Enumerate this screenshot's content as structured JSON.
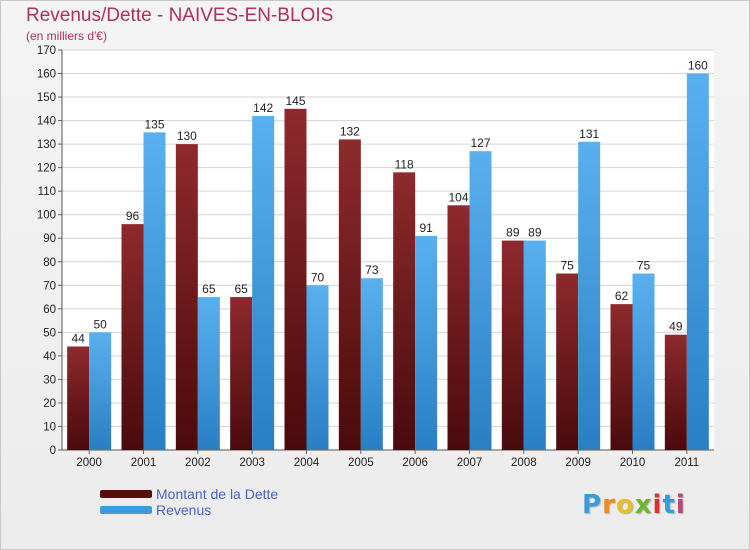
{
  "header": {
    "title": "Revenus/Dette - NAIVES-EN-BLOIS",
    "subtitle": "(en milliers d'€)"
  },
  "logo": {
    "letters": [
      "P",
      "r",
      "o",
      "x",
      "i",
      "t",
      "i"
    ],
    "colors": [
      "#3a9bd8",
      "#f08a1c",
      "#e7c21d",
      "#6cb52d",
      "#d8342f",
      "#3a9bd8",
      "#b9467a"
    ]
  },
  "colors": {
    "dette": "#7a1f22",
    "revenus": "#3d9be0",
    "title": "#b0305a",
    "legend_text": "#4b62c8"
  },
  "chart_data": {
    "type": "bar",
    "categories": [
      "2000",
      "2001",
      "2002",
      "2003",
      "2004",
      "2005",
      "2006",
      "2007",
      "2008",
      "2009",
      "2010",
      "2011"
    ],
    "series": [
      {
        "name": "Montant de la Dette",
        "values": [
          44,
          96,
          130,
          65,
          145,
          132,
          118,
          104,
          89,
          75,
          62,
          49
        ]
      },
      {
        "name": "Revenus",
        "values": [
          50,
          135,
          65,
          142,
          70,
          73,
          91,
          127,
          89,
          131,
          75,
          160
        ]
      }
    ],
    "title": "Revenus/Dette - NAIVES-EN-BLOIS",
    "subtitle": "(en milliers d'€)",
    "xlabel": "",
    "ylabel": "",
    "ylim": [
      0,
      170
    ],
    "yticks": [
      0,
      10,
      20,
      30,
      40,
      50,
      60,
      70,
      80,
      90,
      100,
      110,
      120,
      130,
      140,
      150,
      160,
      170
    ],
    "grid": true,
    "legend_position": "bottom-left"
  }
}
